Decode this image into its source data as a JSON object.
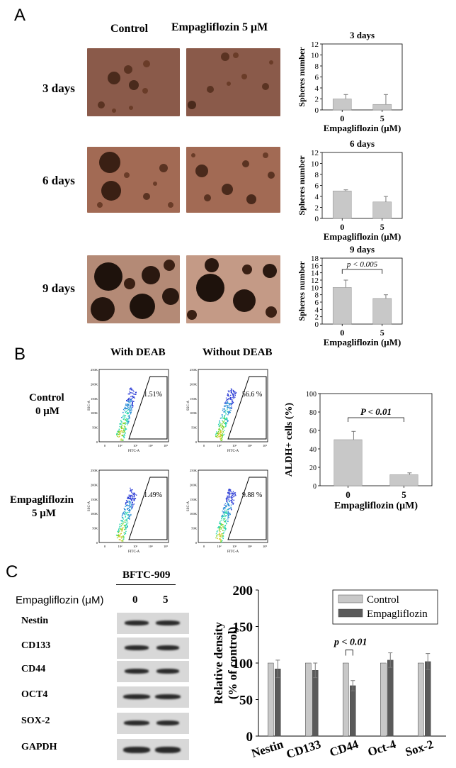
{
  "panels": {
    "a": "A",
    "b": "B",
    "c": "C"
  },
  "panelA": {
    "col_control": "Control",
    "col_treat": "Empagliflozin 5 μM",
    "rows": [
      "3 days",
      "6 days",
      "9 days"
    ]
  },
  "panelB": {
    "col_with": "With DEAB",
    "col_without": "Without DEAB",
    "row1_line1": "Control",
    "row1_line2": "0 μM",
    "row2_line1": "Empagliflozin",
    "row2_line2": "5 μM",
    "flow": {
      "yaxis_label": "SSC-A",
      "xaxis_label": "FITC-A",
      "yticks": [
        "250K",
        "200K",
        "150K",
        "100K",
        "50K",
        "0"
      ],
      "xticks": [
        "0",
        "10²",
        "10³",
        "10⁴",
        "10⁵"
      ],
      "plots": [
        {
          "id": "ctrl-with",
          "pct": "1.51%"
        },
        {
          "id": "ctrl-without",
          "pct": "56.6 %"
        },
        {
          "id": "emp-with",
          "pct": "1.49%"
        },
        {
          "id": "emp-without",
          "pct": "9.88 %"
        }
      ]
    }
  },
  "panelC": {
    "cell_line": "BFTC-909",
    "dose_label": "Empagliflozin (μM)",
    "doses": [
      "0",
      "5"
    ],
    "proteins": [
      "Nestin",
      "CD133",
      "CD44",
      "OCT4",
      "SOX-2",
      "GAPDH"
    ]
  },
  "colors": {
    "bar_light": "#c8c8c8",
    "bar_dark": "#5a5a5a",
    "err": "#7a7a7a"
  },
  "chart_data": [
    {
      "type": "bar",
      "title": "3 days",
      "categories": [
        "0",
        "5"
      ],
      "values": [
        2,
        1
      ],
      "errors": [
        0.8,
        1.8
      ],
      "xlabel": "Empagliflozin (μM)",
      "ylabel": "Spheres number",
      "ylim": [
        0,
        12
      ],
      "yticks": [
        0,
        2,
        4,
        6,
        8,
        10,
        12
      ]
    },
    {
      "type": "bar",
      "title": "6 days",
      "categories": [
        "0",
        "5"
      ],
      "values": [
        5,
        3
      ],
      "errors": [
        0.2,
        1.0
      ],
      "xlabel": "Empagliflozin (μM)",
      "ylabel": "Spheres number",
      "ylim": [
        0,
        12
      ],
      "yticks": [
        0,
        2,
        4,
        6,
        8,
        10,
        12
      ]
    },
    {
      "type": "bar",
      "title": "9 days",
      "categories": [
        "0",
        "5"
      ],
      "values": [
        10,
        7
      ],
      "errors": [
        2.0,
        1.0
      ],
      "xlabel": "Empagliflozin (μM)",
      "ylabel": "Spheres number",
      "ylim": [
        0,
        18
      ],
      "yticks": [
        0,
        2,
        4,
        6,
        8,
        10,
        12,
        14,
        16,
        18
      ],
      "annotation": "p < 0.005"
    },
    {
      "type": "bar",
      "categories": [
        "0",
        "5"
      ],
      "values": [
        50,
        12
      ],
      "errors": [
        9,
        2
      ],
      "xlabel": "Empagliflozin (μM)",
      "ylabel": "ALDH+ cells (%)",
      "ylim": [
        0,
        100
      ],
      "yticks": [
        0,
        20,
        40,
        60,
        80,
        100
      ],
      "annotation": "P < 0.01"
    },
    {
      "type": "bar",
      "categories": [
        "Nestin",
        "CD133",
        "CD44",
        "Oct-4",
        "Sox-2"
      ],
      "series": [
        {
          "name": "Control",
          "values": [
            100,
            100,
            100,
            100,
            100
          ],
          "errors": [
            0,
            0,
            0,
            0,
            0
          ]
        },
        {
          "name": "Empagliflozin",
          "values": [
            92,
            90,
            69,
            104,
            102
          ],
          "errors": [
            12,
            10,
            7,
            10,
            11
          ]
        }
      ],
      "ylabel": "Relative density (% of control)",
      "ylim": [
        0,
        200
      ],
      "yticks": [
        0,
        50,
        100,
        150,
        200
      ],
      "annotation": "p < 0.01",
      "legend": "top-right"
    }
  ]
}
